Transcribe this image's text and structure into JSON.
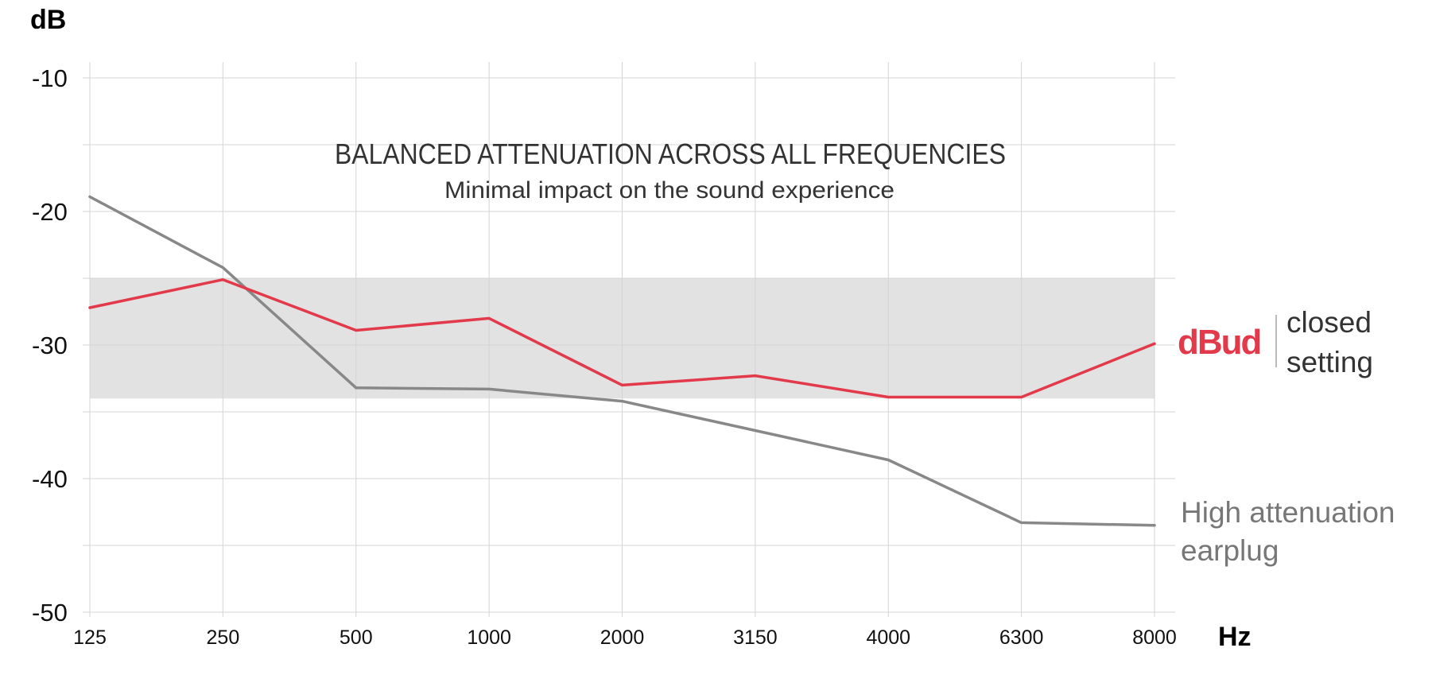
{
  "chart_data": {
    "type": "line",
    "title": "BALANCED ATTENUATION ACROSS ALL FREQUENCIES",
    "subtitle": "Minimal impact on the sound experience",
    "ylabel": "dB",
    "xlabel": "Hz",
    "categories": [
      "125",
      "250",
      "500",
      "1000",
      "2000",
      "3150",
      "4000",
      "6300",
      "8000"
    ],
    "yticks": [
      -10,
      -20,
      -30,
      -40,
      -50
    ],
    "ylim": [
      -50,
      -10
    ],
    "grid": true,
    "band": {
      "from": -25,
      "to": -34
    },
    "series": [
      {
        "name": "High attenuation earplug",
        "color": "#888888",
        "values": [
          -18.9,
          -24.2,
          -33.2,
          -33.3,
          -34.2,
          -36.4,
          -38.6,
          -43.3,
          -43.5
        ]
      },
      {
        "name": "dBud closed setting",
        "color": "#e23a4b",
        "values": [
          -27.2,
          -25.1,
          -28.9,
          -28.0,
          -33.0,
          -32.3,
          -33.9,
          -33.9,
          -29.9
        ]
      }
    ],
    "legend": {
      "dbud": {
        "brand": "dBud",
        "line1": "closed",
        "line2": "setting",
        "brand_color": "#e23a4b",
        "text_color": "#333333"
      },
      "earplug": {
        "line1": "High attenuation",
        "line2": "earplug",
        "text_color": "#777777"
      }
    }
  }
}
